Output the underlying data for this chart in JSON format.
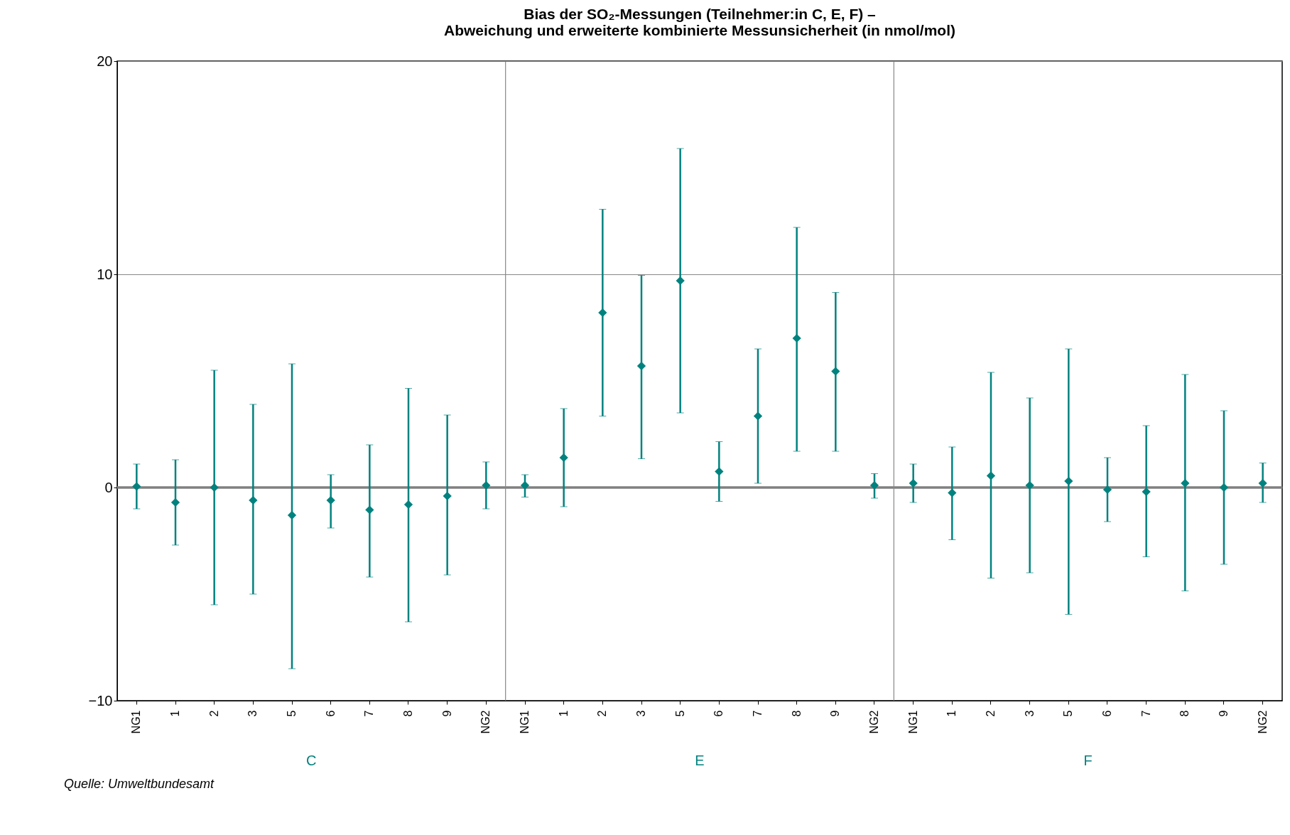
{
  "chart_data": {
    "type": "scatter",
    "title": "Bias der SO₂-Messungen (Teilnehmer:in C, E, F) –\nAbweichung und erweiterte kombinierte Messunsicherheit (in nmol/mol)",
    "categories": [
      "NG1",
      "1",
      "2",
      "3",
      "5",
      "6",
      "7",
      "8",
      "9",
      "NG2",
      "NG1",
      "1",
      "2",
      "3",
      "5",
      "6",
      "7",
      "8",
      "9",
      "NG2",
      "NG1",
      "1",
      "2",
      "3",
      "5",
      "6",
      "7",
      "8",
      "9",
      "NG2"
    ],
    "series": [
      {
        "color": "#00827f",
        "values": [
          0.05,
          -0.7,
          0,
          -0.6,
          -1.3,
          -0.6,
          -1.05,
          -0.8,
          -0.4,
          0.1,
          0.1,
          1.4,
          8.2,
          5.7,
          9.7,
          0.75,
          3.35,
          7.0,
          5.45,
          0.1,
          0.2,
          -0.25,
          0.55,
          0.1,
          0.3,
          -0.1,
          -0.2,
          0.2,
          0,
          0.2
        ],
        "errors": [
          [
            -1.0,
            1.1
          ],
          [
            -2.7,
            1.3
          ],
          [
            -5.5,
            5.5
          ],
          [
            -5.0,
            3.9
          ],
          [
            -8.5,
            5.8
          ],
          [
            -1.9,
            0.6
          ],
          [
            -4.2,
            2.0
          ],
          [
            -6.3,
            4.65
          ],
          [
            -4.1,
            3.4
          ],
          [
            -1.0,
            1.2
          ],
          [
            -0.45,
            0.6
          ],
          [
            -0.9,
            3.7
          ],
          [
            3.35,
            13.05
          ],
          [
            1.35,
            9.95
          ],
          [
            3.5,
            15.9
          ],
          [
            -0.65,
            2.15
          ],
          [
            0.2,
            6.5
          ],
          [
            1.7,
            12.2
          ],
          [
            1.7,
            9.15
          ],
          [
            -0.5,
            0.65
          ],
          [
            -0.7,
            1.1
          ],
          [
            -2.45,
            1.9
          ],
          [
            -4.25,
            5.4
          ],
          [
            -4.0,
            4.2
          ],
          [
            -5.95,
            6.5
          ],
          [
            -1.6,
            1.4
          ],
          [
            -3.25,
            2.9
          ],
          [
            -4.85,
            5.3
          ],
          [
            -3.6,
            3.6
          ],
          [
            -0.7,
            1.15
          ]
        ]
      }
    ],
    "ylim": [
      -10,
      20
    ],
    "yticks": [
      -10,
      0,
      10,
      20
    ],
    "grid": "y",
    "marker": "diamond",
    "ref_lines": [
      {
        "axis": "y",
        "value": 0,
        "color": "#808080"
      }
    ],
    "annotations": [
      "C",
      "E",
      "F",
      "Quelle: Umweltbundesamt"
    ]
  }
}
